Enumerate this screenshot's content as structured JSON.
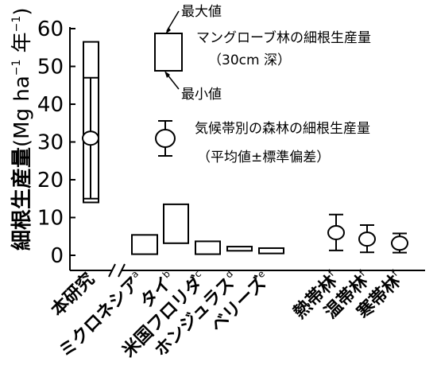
{
  "chart_data": {
    "type": "box-range",
    "ylabel": "細根生産量",
    "yunit_parts": [
      "(Mg ha",
      "−1",
      " 年",
      "−1",
      ")"
    ],
    "ylim": [
      0,
      60
    ],
    "yticks": [
      0,
      10,
      20,
      30,
      40,
      50,
      60
    ],
    "boxes": [
      {
        "label": "本研究",
        "sup": "",
        "min": 14,
        "max": 56.5
      },
      {
        "label": "ミクロネシア",
        "sup": "a",
        "min": 0.3,
        "max": 5.4
      },
      {
        "label": "タイ",
        "sup": "b",
        "min": 3.2,
        "max": 13.5
      },
      {
        "label": "米国フロリダ",
        "sup": "c",
        "min": 0.3,
        "max": 3.7
      },
      {
        "label": "ホンジュラス",
        "sup": "d",
        "min": 1.2,
        "max": 2.3
      },
      {
        "label": "ベリーズ",
        "sup": "e",
        "min": 0.5,
        "max": 1.9
      }
    ],
    "means": [
      {
        "label": "本研究",
        "sup": "",
        "mean": 31,
        "sd_low": 15,
        "sd_high": 47
      },
      {
        "label": "熱帯林",
        "sup": "f",
        "mean": 6,
        "sd_low": 1.3,
        "sd_high": 10.8
      },
      {
        "label": "温帯林",
        "sup": "f",
        "mean": 4.3,
        "sd_low": 0.8,
        "sd_high": 8
      },
      {
        "label": "寒帯林",
        "sup": "f",
        "mean": 3.2,
        "sd_low": 0.7,
        "sd_high": 5.8
      }
    ],
    "legend": {
      "box_max": "最大値",
      "box_min": "最小値",
      "box_title": "マングローブ林の細根生産量",
      "box_sub": "（30cm 深）",
      "mean_title": "気候帯別の森林の細根生産量",
      "mean_sub": "（平均値±標準偏差）"
    }
  }
}
